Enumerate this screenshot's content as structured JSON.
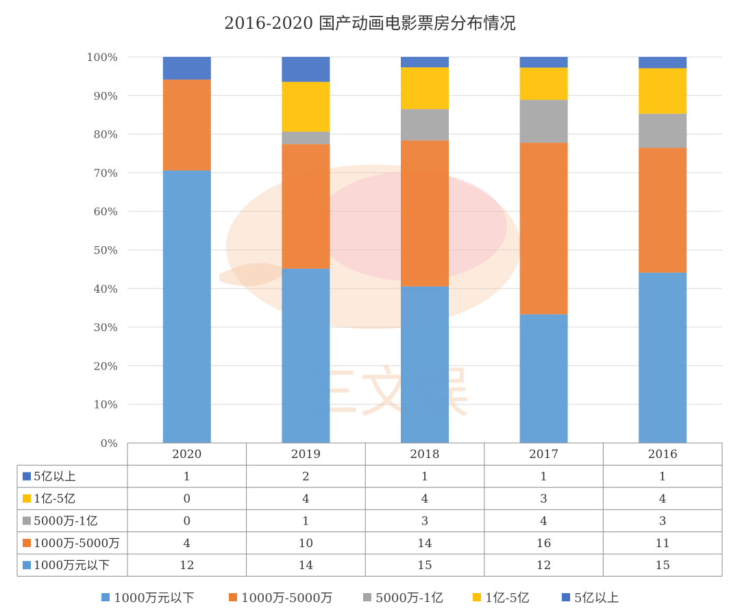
{
  "chart_data": {
    "type": "bar",
    "stacked": "percent",
    "title": "2016-2020 国产动画电影票房分布情况",
    "categories": [
      "2020",
      "2019",
      "2018",
      "2017",
      "2016"
    ],
    "y_ticks": [
      "0%",
      "10%",
      "20%",
      "30%",
      "40%",
      "50%",
      "60%",
      "70%",
      "80%",
      "90%",
      "100%"
    ],
    "ylim": [
      0,
      100
    ],
    "series": [
      {
        "name": "1000万元以下",
        "color": "#5b9bd5",
        "values": [
          12,
          14,
          15,
          12,
          15
        ]
      },
      {
        "name": "1000万-5000万",
        "color": "#ed7d31",
        "values": [
          4,
          10,
          14,
          16,
          11
        ]
      },
      {
        "name": "5000万-1亿",
        "color": "#a5a5a5",
        "values": [
          0,
          1,
          3,
          4,
          3
        ]
      },
      {
        "name": "1亿-5亿",
        "color": "#ffc000",
        "values": [
          0,
          4,
          4,
          3,
          4
        ]
      },
      {
        "name": "5亿以上",
        "color": "#4472c4",
        "values": [
          1,
          2,
          1,
          1,
          1
        ]
      }
    ],
    "legend_position": "bottom",
    "watermark": "三文娱"
  }
}
